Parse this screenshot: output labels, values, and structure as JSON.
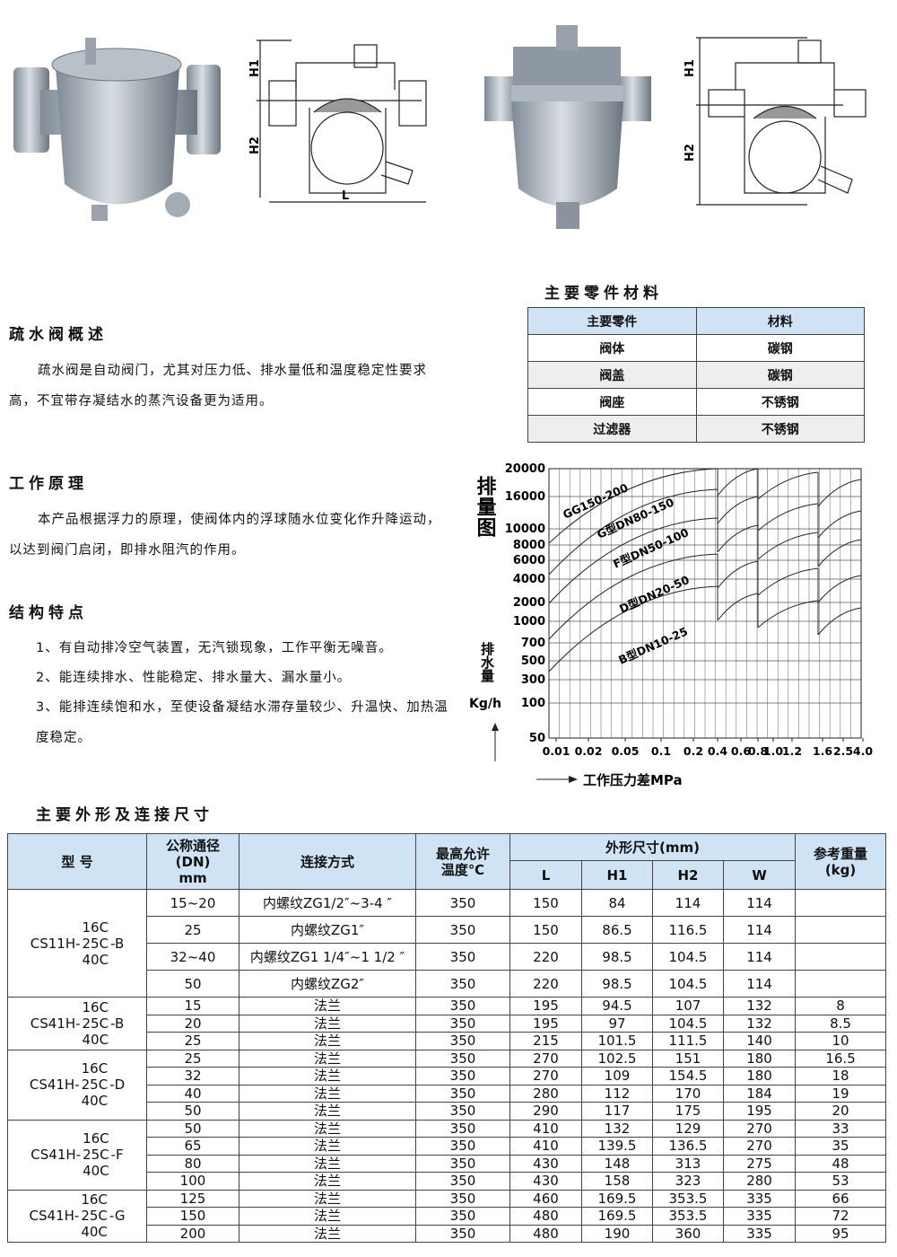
{
  "figures": {
    "drawing_left": [
      "H1",
      "H2",
      "L"
    ],
    "drawing_right": [
      "H1",
      "H2"
    ]
  },
  "materials": {
    "title": "主要零件材料",
    "header": [
      "主要零件",
      "材料"
    ],
    "rows": [
      [
        "阀体",
        "碳钢"
      ],
      [
        "阀盖",
        "碳钢"
      ],
      [
        "阀座",
        "不锈钢"
      ],
      [
        "过滤器",
        "不锈钢"
      ]
    ]
  },
  "sections": [
    {
      "title": "疏水阀概述",
      "paragraphs": [
        "疏水阀是自动阀门，尤其对压力低、排水量低和温度稳定性要求高，不宜带存凝结水的蒸汽设备更为适用。"
      ]
    },
    {
      "title": "工作原理",
      "paragraphs": [
        "本产品根据浮力的原理，使阀体内的浮球随水位变化作升降运动，以达到阀门启闭，即排水阻汽的作用。"
      ]
    },
    {
      "title": "结构特点",
      "items": [
        "1、有自动排冷空气装置，无汽锁现象，工作平衡无噪音。",
        "2、能连续排水、性能稳定、排水量大、漏水量小。",
        "3、能排连续饱和水，至使设备凝结水滞存量较少、升温快、加热温度稳定。"
      ]
    }
  ],
  "discharge_chart": {
    "title": "排量图",
    "y_label": "排水量",
    "y_unit": "Kg/h",
    "x_label": "工作压力差MPa",
    "yticks": [
      20000,
      16000,
      10000,
      8000,
      6000,
      4000,
      2000,
      1000,
      700,
      500,
      300,
      100,
      50
    ],
    "xticks": [
      0.01,
      0.02,
      0.05,
      0.1,
      0.2,
      0.4,
      0.6,
      0.8,
      {
        "value": 1,
        "label": "1.0"
      },
      1.2,
      1.6,
      2.5,
      {
        "value": 4,
        "label": "4.0"
      }
    ],
    "curve_labels": [
      "GG150-200",
      "G型DN80-150",
      "F型DN50-100",
      "D型DN20-50",
      "B型DN10-25"
    ]
  },
  "dimensions": {
    "title": "主要外形及连接尺寸",
    "header": {
      "model": "型 号",
      "dn": [
        "公称通径",
        "(DN)",
        "mm"
      ],
      "connection": "连接方式",
      "temperature": [
        "最高允许",
        "温度℃"
      ],
      "size": "外形尺寸(mm)",
      "size_columns": [
        "L",
        "H1",
        "H2",
        "W"
      ],
      "weight": [
        "参考重量",
        "(kg)"
      ]
    },
    "groups": [
      {
        "model": "CS11H-",
        "grades": [
          "16C",
          "25C",
          "40C"
        ],
        "suffix": "-B",
        "rows": [
          [
            "15~20",
            "内螺纹ZG1/2″~3-4 ″",
            350,
            150,
            84,
            114,
            114
          ],
          [
            25,
            "内螺纹ZG1″",
            350,
            150,
            86.5,
            116.5,
            114
          ],
          [
            "32~40",
            "内螺纹ZG1 1/4″~1 1/2 ″",
            350,
            220,
            98.5,
            104.5,
            114
          ],
          [
            50,
            "内螺纹ZG2″",
            350,
            220,
            98.5,
            104.5,
            114
          ]
        ]
      },
      {
        "model": "CS41H-",
        "grades": [
          "16C",
          "25C",
          "40C"
        ],
        "suffix": "-B",
        "rows": [
          [
            15,
            "法兰",
            350,
            195,
            94.5,
            107,
            132,
            8
          ],
          [
            20,
            "法兰",
            350,
            195,
            97,
            104.5,
            132,
            8.5
          ],
          [
            25,
            "法兰",
            350,
            215,
            101.5,
            111.5,
            140,
            10
          ]
        ]
      },
      {
        "model": "CS41H-",
        "grades": [
          "16C",
          "25C",
          "40C"
        ],
        "suffix": "-D",
        "rows": [
          [
            25,
            "法兰",
            350,
            270,
            102.5,
            151,
            180,
            16.5
          ],
          [
            32,
            "法兰",
            350,
            270,
            109,
            154.5,
            180,
            18
          ],
          [
            40,
            "法兰",
            350,
            280,
            112,
            170,
            184,
            19
          ],
          [
            50,
            "法兰",
            350,
            290,
            117,
            175,
            195,
            20
          ]
        ]
      },
      {
        "model": "CS41H-",
        "grades": [
          "16C",
          "25C",
          "40C"
        ],
        "suffix": "-F",
        "rows": [
          [
            50,
            "法兰",
            350,
            410,
            132,
            129,
            270,
            33
          ],
          [
            65,
            "法兰",
            350,
            410,
            139.5,
            136.5,
            270,
            35
          ],
          [
            80,
            "法兰",
            350,
            430,
            148,
            313,
            275,
            48
          ],
          [
            100,
            "法兰",
            350,
            430,
            158,
            323,
            280,
            53
          ]
        ]
      },
      {
        "model": "CS41H-",
        "grades": [
          "16C",
          "25C",
          "40C"
        ],
        "suffix": "-G",
        "rows": [
          [
            125,
            "法兰",
            350,
            460,
            169.5,
            353.5,
            335,
            66
          ],
          [
            150,
            "法兰",
            350,
            480,
            169.5,
            353.5,
            335,
            72
          ],
          [
            200,
            "法兰",
            350,
            480,
            190,
            360,
            335,
            95
          ]
        ]
      }
    ]
  }
}
